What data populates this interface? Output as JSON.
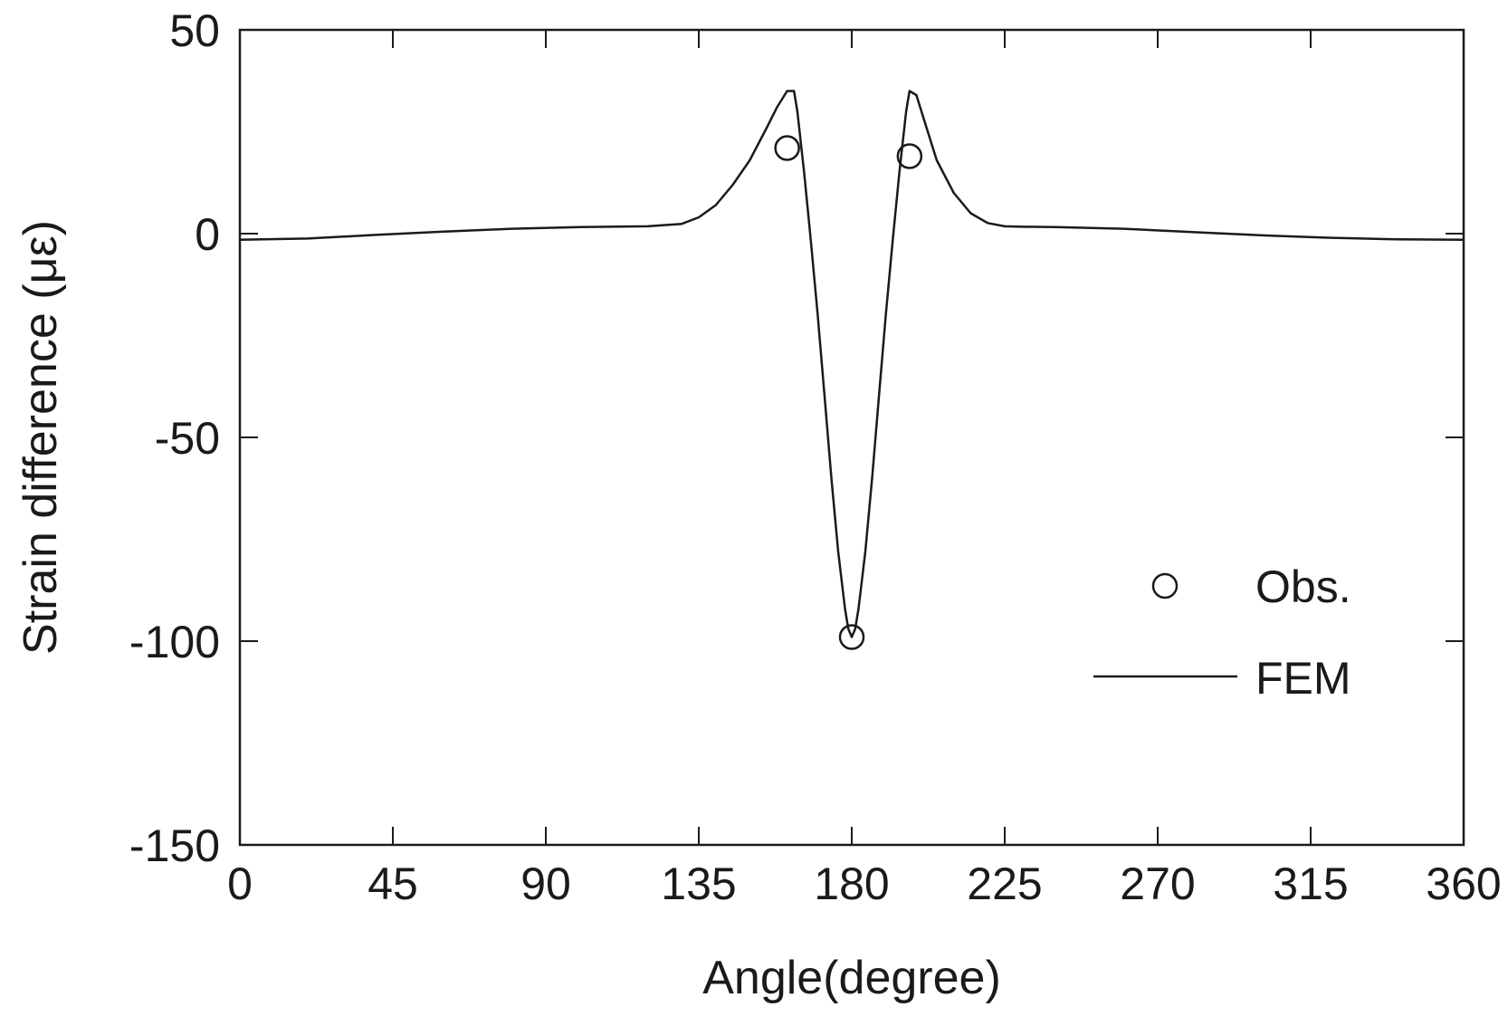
{
  "chart_data": {
    "type": "line",
    "xlabel": "Angle(degree)",
    "ylabel": "Strain difference (με)",
    "xlim": [
      0,
      360
    ],
    "ylim": [
      -150,
      50
    ],
    "xticks": [
      0,
      45,
      90,
      135,
      180,
      225,
      270,
      315,
      360
    ],
    "yticks": [
      50,
      0,
      -50,
      -100,
      -150
    ],
    "xtick_labels": [
      "0",
      "45",
      "90",
      "135",
      "180",
      "225",
      "270",
      "315",
      "360"
    ],
    "ytick_labels": [
      "50",
      "0",
      "-50",
      "-100",
      "-150"
    ],
    "grid": false,
    "legend_position": "right",
    "series": [
      {
        "name": "Obs.",
        "kind": "scatter",
        "marker": "open-circle",
        "x": [
          161,
          180,
          197
        ],
        "y": [
          21,
          -99,
          19
        ]
      },
      {
        "name": "FEM",
        "kind": "line",
        "x": [
          0,
          20,
          40,
          60,
          80,
          100,
          120,
          130,
          135,
          140,
          145,
          150,
          155,
          158,
          161,
          163,
          164,
          166,
          168,
          170,
          172,
          174,
          176,
          178,
          179,
          180,
          181,
          182,
          184,
          186,
          188,
          190,
          192,
          194,
          196,
          197,
          199,
          202,
          205,
          210,
          215,
          220,
          225,
          230,
          240,
          260,
          280,
          300,
          320,
          340,
          360
        ],
        "y": [
          -1.5,
          -1.2,
          -0.3,
          0.5,
          1.2,
          1.6,
          1.8,
          2.4,
          4,
          7,
          12,
          18,
          26,
          31,
          35,
          35,
          30,
          15,
          -2,
          -20,
          -40,
          -60,
          -78,
          -92,
          -97,
          -99,
          -97,
          -92,
          -78,
          -60,
          -40,
          -20,
          -2,
          15,
          30,
          35,
          34,
          26,
          18,
          10,
          5,
          2.6,
          1.8,
          1.7,
          1.6,
          1.2,
          0.4,
          -0.4,
          -1.0,
          -1.4,
          -1.5
        ]
      }
    ]
  }
}
